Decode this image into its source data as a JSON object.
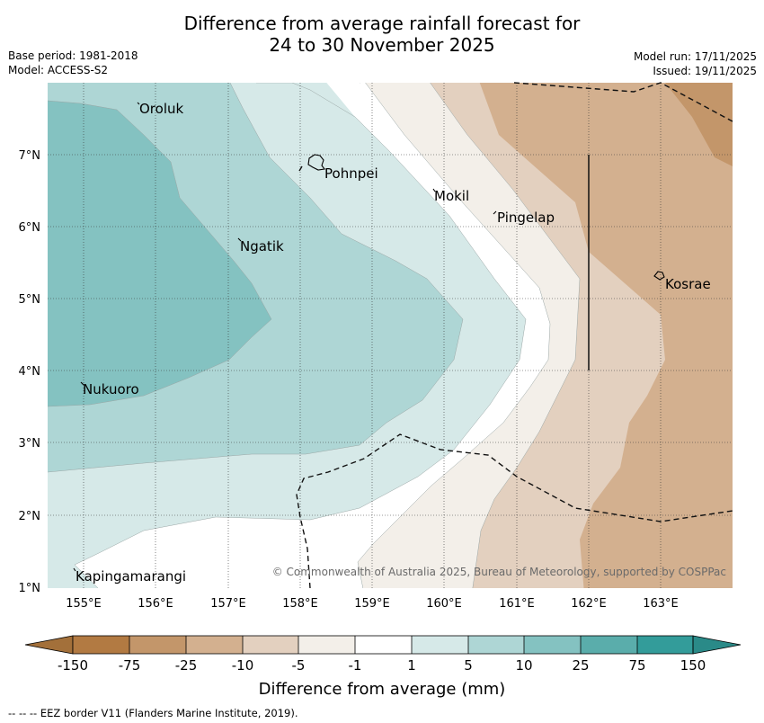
{
  "title": {
    "line1": "Difference from average rainfall forecast for",
    "line2": "24 to 30 November 2025"
  },
  "meta": {
    "base_period": "Base period: 1981-2018",
    "model": "Model: ACCESS-S2",
    "model_run": "Model run: 17/11/2025",
    "issued": "Issued: 19/11/2025"
  },
  "map": {
    "x_ticks": [
      "155°E",
      "156°E",
      "157°E",
      "158°E",
      "159°E",
      "160°E",
      "161°E",
      "162°E",
      "163°E"
    ],
    "y_ticks": [
      "7°N",
      "6°N",
      "5°N",
      "4°N",
      "3°N",
      "2°N",
      "1°N"
    ],
    "places": {
      "oroluk": "Oroluk",
      "pohnpei": "Pohnpei",
      "mokil": "Mokil",
      "pingelap": "Pingelap",
      "ngatik": "Ngatik",
      "kosrae": "Kosrae",
      "nukuoro": "Nukuoro",
      "kapingamarangi": "Kapingamarangi"
    },
    "copyright": "© Commonwealth of Australia 2025, Bureau of Meteorology, supported by COSPPac"
  },
  "colorbar": {
    "ticks": [
      "-150",
      "-75",
      "-25",
      "-10",
      "-5",
      "-1",
      "1",
      "5",
      "10",
      "25",
      "75",
      "150"
    ],
    "label": "Difference from average (mm)",
    "colors": {
      "below_150": "#a3703a",
      "n150_n75": "#b27a42",
      "n75_n25": "#c3966a",
      "n25_n10": "#d3b08f",
      "n10_n5": "#e3d0bf",
      "n5_n1": "#f3efe9",
      "n1_p1": "#ffffff",
      "p1_p5": "#d6e9e8",
      "p5_p10": "#aed6d5",
      "p10_p25": "#84c2c1",
      "p25_p75": "#5aadab",
      "p75_p150": "#339c9a",
      "above_150": "#2a8a88"
    }
  },
  "footer": "--  --  -- EEZ border V11 (Flanders Marine Institute, 2019)."
}
